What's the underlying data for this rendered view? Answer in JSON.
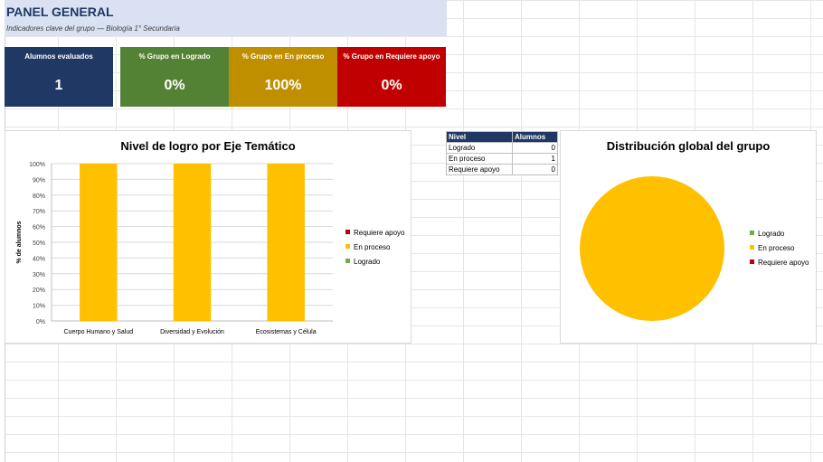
{
  "header": {
    "title": "PANEL GENERAL",
    "subtitle": "Indicadores clave del grupo — Biología 1° Secundaria"
  },
  "kpis": [
    {
      "label": "Alumnos evaluados",
      "value": "1",
      "color": "#203864"
    },
    {
      "label": "% Grupo en Logrado",
      "value": "0%",
      "color": "#548235"
    },
    {
      "label": "% Grupo en En proceso",
      "value": "100%",
      "color": "#bf8f00"
    },
    {
      "label": "% Grupo en Requiere apoyo",
      "value": "0%",
      "color": "#c00000"
    }
  ],
  "summary_table": {
    "headers": [
      "Nivel",
      "Alumnos"
    ],
    "rows": [
      {
        "level": "Logrado",
        "count": "0"
      },
      {
        "level": "En proceso",
        "count": "1"
      },
      {
        "level": "Requiere apoyo",
        "count": "0"
      }
    ]
  },
  "colors": {
    "logrado": "#70ad47",
    "en_proceso": "#ffc000",
    "requiere_apoyo": "#c00000"
  },
  "chart_data": [
    {
      "type": "bar",
      "stacked": true,
      "title": "Nivel de logro por Eje Temático",
      "ylabel": "% de alumnos",
      "xlabel": "",
      "categories": [
        "Cuerpo Humano y Salud",
        "Diversidad y Evolución",
        "Ecosistemas y Célula"
      ],
      "y_ticks": [
        "0%",
        "10%",
        "20%",
        "30%",
        "40%",
        "50%",
        "60%",
        "70%",
        "80%",
        "90%",
        "100%"
      ],
      "ylim": [
        0,
        100
      ],
      "grid": true,
      "legend_position": "right",
      "series": [
        {
          "name": "Logrado",
          "values": [
            0,
            0,
            0
          ],
          "color": "#70ad47"
        },
        {
          "name": "En proceso",
          "values": [
            100,
            100,
            100
          ],
          "color": "#ffc000"
        },
        {
          "name": "Requiere apoyo",
          "values": [
            0,
            0,
            0
          ],
          "color": "#c00000"
        }
      ],
      "legend_order": [
        "Requiere apoyo",
        "En proceso",
        "Logrado"
      ]
    },
    {
      "type": "pie",
      "title": "Distribución global del grupo",
      "legend_position": "right",
      "labels": [
        "Logrado",
        "En proceso",
        "Requiere apoyo"
      ],
      "values": [
        0,
        1,
        0
      ],
      "colors": [
        "#70ad47",
        "#ffc000",
        "#c00000"
      ]
    }
  ]
}
